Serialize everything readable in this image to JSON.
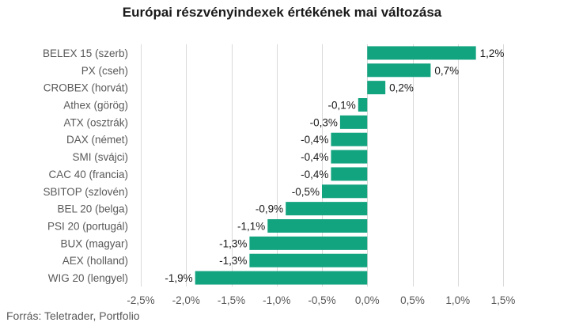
{
  "chart_data": {
    "type": "bar",
    "orientation": "horizontal",
    "title": "Európai részvényindexek értékének mai változása",
    "categories": [
      "BELEX 15 (szerb)",
      "PX (cseh)",
      "CROBEX (horvát)",
      "Athex (görög)",
      "ATX (osztrák)",
      "DAX (német)",
      "SMI (svájci)",
      "CAC 40 (francia)",
      "SBITOP (szlovén)",
      "BEL 20 (belga)",
      "PSI 20 (portugál)",
      "BUX (magyar)",
      "AEX (holland)",
      "WIG 20 (lengyel)"
    ],
    "values": [
      1.2,
      0.7,
      0.2,
      -0.1,
      -0.3,
      -0.4,
      -0.4,
      -0.4,
      -0.5,
      -0.9,
      -1.1,
      -1.3,
      -1.3,
      -1.9
    ],
    "data_labels": [
      "1,2%",
      "0,7%",
      "0,2%",
      "-0,1%",
      "-0,3%",
      "-0,4%",
      "-0,4%",
      "-0,4%",
      "-0,5%",
      "-0,9%",
      "-1,1%",
      "-1,3%",
      "-1,3%",
      "-1,9%"
    ],
    "xlim": [
      -2.5,
      1.5
    ],
    "x_ticks": [
      -2.5,
      -2.0,
      -1.5,
      -1.0,
      -0.5,
      0.0,
      0.5,
      1.0,
      1.5
    ],
    "x_tick_labels": [
      "-2,5%",
      "-2,0%",
      "-1,5%",
      "-1,0%",
      "-0,5%",
      "0,0%",
      "0,5%",
      "1,0%",
      "1,5%"
    ],
    "grid": true,
    "bar_color": "#12a37f"
  },
  "source": "Forrás: Teletrader, Portfolio"
}
